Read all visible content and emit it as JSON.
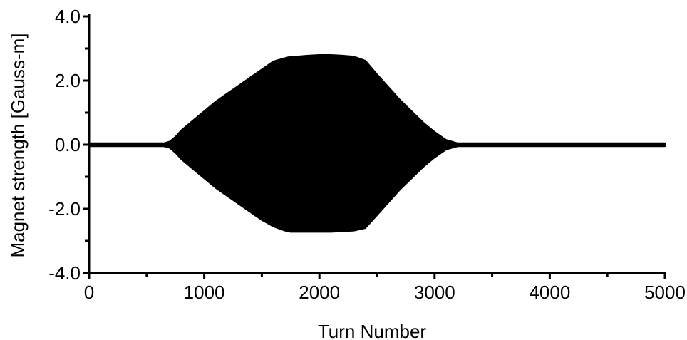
{
  "chart_data": {
    "type": "area",
    "title": "",
    "xlabel": "Turn Number",
    "ylabel": "Magnet strength [Gauss-m]",
    "xlim": [
      0,
      5000
    ],
    "ylim": [
      -4.0,
      4.0
    ],
    "x_ticks": [
      0,
      1000,
      2000,
      3000,
      4000,
      5000
    ],
    "x_tick_labels": [
      "0",
      "1000",
      "2000",
      "3000",
      "4000",
      "5000"
    ],
    "y_ticks": [
      4.0,
      2.0,
      0.0,
      -2.0,
      -4.0
    ],
    "y_tick_labels": [
      "4.0",
      "2.0",
      "0.0",
      "-2.0",
      "-4.0"
    ],
    "grid": false,
    "legend": "none",
    "series": [
      {
        "color": "#000000",
        "description_of_shape": "oscillating signal envelope",
        "x": [
          0,
          650,
          700,
          750,
          800,
          900,
          1000,
          1100,
          1200,
          1300,
          1400,
          1500,
          1600,
          1700,
          1750,
          1800,
          1900,
          2000,
          2100,
          2200,
          2300,
          2400,
          2500,
          2600,
          2700,
          2800,
          2900,
          3000,
          3100,
          3200,
          3250,
          3300,
          5000
        ],
        "upper": [
          0.05,
          0.05,
          0.1,
          0.25,
          0.45,
          0.75,
          1.05,
          1.35,
          1.6,
          1.85,
          2.1,
          2.35,
          2.6,
          2.7,
          2.75,
          2.75,
          2.78,
          2.8,
          2.8,
          2.78,
          2.75,
          2.62,
          2.2,
          1.8,
          1.4,
          1.05,
          0.7,
          0.4,
          0.15,
          0.05,
          0.05,
          0.05,
          0.05
        ],
        "lower": [
          -0.05,
          -0.05,
          -0.1,
          -0.25,
          -0.45,
          -0.75,
          -1.05,
          -1.35,
          -1.6,
          -1.85,
          -2.1,
          -2.35,
          -2.55,
          -2.68,
          -2.72,
          -2.72,
          -2.72,
          -2.72,
          -2.72,
          -2.7,
          -2.68,
          -2.6,
          -2.2,
          -1.8,
          -1.4,
          -1.05,
          -0.7,
          -0.4,
          -0.15,
          -0.05,
          -0.05,
          -0.05,
          -0.05
        ]
      }
    ]
  }
}
